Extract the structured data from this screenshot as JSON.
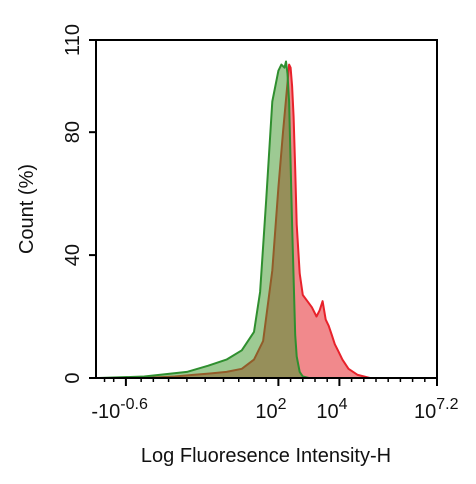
{
  "chart_data": {
    "type": "area",
    "title": "",
    "xlabel": "Log Fluoresence Intensity-H",
    "ylabel": "Count  (%)",
    "xscale": "biexponential",
    "xlim": [
      -3.98,
      7.2
    ],
    "ylim": [
      0,
      110
    ],
    "grid": false,
    "legend": "none",
    "y_ticks": [
      {
        "value": 0,
        "label": "0"
      },
      {
        "value": 40,
        "label": "40"
      },
      {
        "value": 80,
        "label": "80"
      },
      {
        "value": 110,
        "label": "110"
      }
    ],
    "x_ticks": [
      {
        "pos": -3.0,
        "base": "-10",
        "exp": "-0.6"
      },
      {
        "pos": 2.0,
        "base": "10",
        "exp": "2"
      },
      {
        "pos": 4.0,
        "base": "10",
        "exp": "4"
      },
      {
        "pos": 7.2,
        "base": "10",
        "exp": "7.2"
      }
    ],
    "series": [
      {
        "color": "#e8222b",
        "fill": "rgba(230,40,45,0.55)",
        "x": [
          -3.9,
          -2.4,
          -1.4,
          -0.8,
          -0.2,
          0.3,
          0.8,
          1.2,
          1.5,
          1.8,
          2.0,
          2.15,
          2.3,
          2.35,
          2.4,
          2.45,
          2.5,
          2.55,
          2.6,
          2.7,
          2.8,
          2.95,
          3.1,
          3.25,
          3.35,
          3.45,
          3.55,
          3.65,
          3.75,
          3.85,
          3.95,
          4.1,
          4.3,
          4.6,
          5.0,
          7.2
        ],
        "y": [
          0,
          0,
          0.5,
          1,
          1.5,
          2,
          3,
          6,
          12,
          35,
          62,
          80,
          96,
          102,
          101,
          95,
          85,
          68,
          50,
          34,
          27,
          25,
          23,
          20,
          22,
          25,
          19,
          17,
          14,
          11,
          9,
          6,
          3,
          1,
          0,
          0
        ]
      },
      {
        "color": "#2f8f2f",
        "fill": "rgba(60,150,40,0.5)",
        "x": [
          -3.9,
          -2.4,
          -1.0,
          -0.3,
          0.3,
          0.8,
          1.2,
          1.4,
          1.6,
          1.8,
          2.0,
          2.1,
          2.2,
          2.25,
          2.3,
          2.35,
          2.45,
          2.55,
          2.6,
          2.7,
          2.8,
          3.0,
          3.3,
          7.2
        ],
        "y": [
          0,
          0.5,
          2,
          4,
          6,
          9,
          15,
          28,
          58,
          90,
          100,
          102,
          101,
          103,
          99,
          90,
          50,
          14,
          7,
          2,
          0.5,
          0,
          0,
          0
        ]
      }
    ]
  }
}
